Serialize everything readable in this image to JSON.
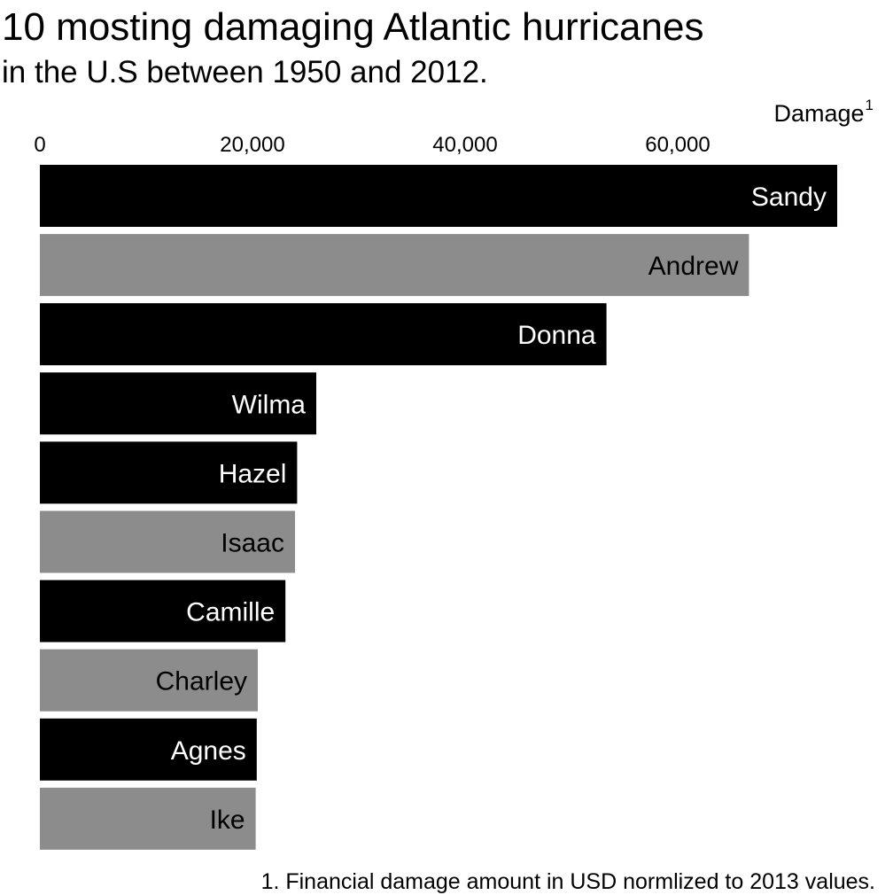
{
  "title": "10 mosting damaging Atlantic hurricanes",
  "subtitle": "in the U.S between 1950 and 2012.",
  "footnote": "1. Financial damage amount in USD normlized to 2013 values.",
  "colors": {
    "dark_bar": "#000000",
    "light_bar": "#8c8c8c",
    "dark_label": "#ffffff",
    "light_label": "#000000"
  },
  "chart_data": {
    "type": "bar",
    "orientation": "horizontal",
    "title": "10 mosting damaging Atlantic hurricanes",
    "subtitle": "in the U.S between 1950 and 2012.",
    "xlabel": "Damage",
    "xlabel_superscript": "1",
    "xlim": [
      0,
      78000
    ],
    "xticks": [
      0,
      20000,
      40000,
      60000
    ],
    "xtick_labels": [
      "0",
      "20,000",
      "40,000",
      "60,000"
    ],
    "grid": false,
    "axis_position": "top",
    "categories": [
      "Sandy",
      "Andrew",
      "Donna",
      "Wilma",
      "Hazel",
      "Isaac",
      "Camille",
      "Charley",
      "Agnes",
      "Ike"
    ],
    "values": [
      75000,
      66700,
      53300,
      26000,
      24200,
      24000,
      23100,
      20500,
      20400,
      20300
    ],
    "bar_colors": [
      "dark",
      "light",
      "dark",
      "dark",
      "dark",
      "light",
      "dark",
      "light",
      "dark",
      "light"
    ]
  }
}
